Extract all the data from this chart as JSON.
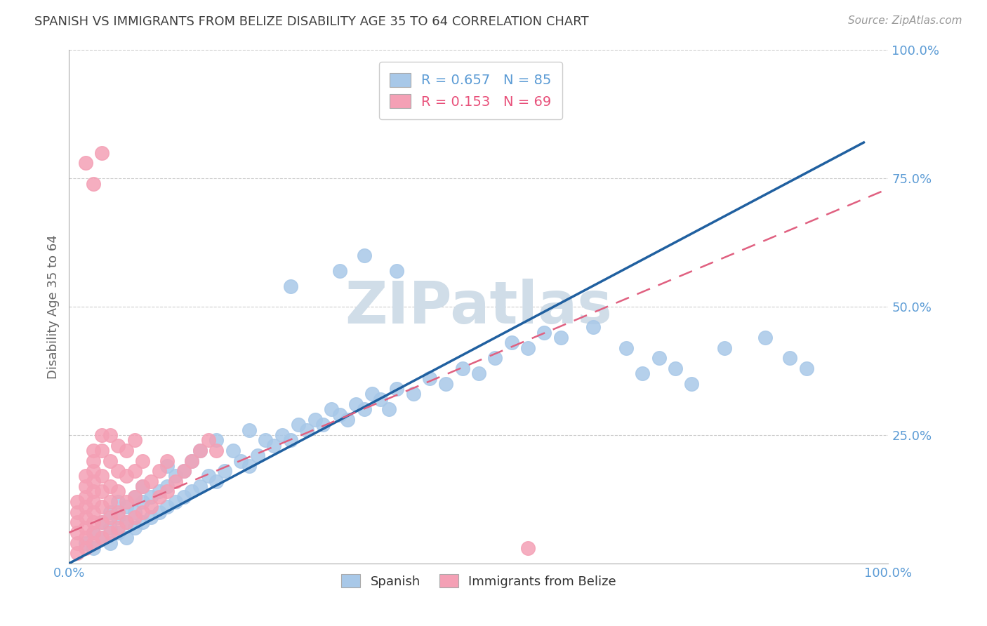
{
  "title": "SPANISH VS IMMIGRANTS FROM BELIZE DISABILITY AGE 35 TO 64 CORRELATION CHART",
  "source": "Source: ZipAtlas.com",
  "ylabel": "Disability Age 35 to 64",
  "xlim": [
    0.0,
    1.0
  ],
  "ylim": [
    0.0,
    1.0
  ],
  "ytick_positions": [
    0.0,
    0.25,
    0.5,
    0.75,
    1.0
  ],
  "yticklabels": [
    "",
    "25.0%",
    "50.0%",
    "75.0%",
    "100.0%"
  ],
  "xtick_positions": [
    0.0,
    0.125,
    0.25,
    0.375,
    0.5,
    0.625,
    0.75,
    0.875,
    1.0
  ],
  "xticklabels": [
    "0.0%",
    "",
    "",
    "",
    "",
    "",
    "",
    "",
    "100.0%"
  ],
  "blue_R": 0.657,
  "blue_N": 85,
  "pink_R": 0.153,
  "pink_N": 69,
  "blue_color": "#a8c8e8",
  "pink_color": "#f4a0b5",
  "blue_line_color": "#2060a0",
  "pink_line_color": "#e06080",
  "blue_scatter": [
    [
      0.02,
      0.04
    ],
    [
      0.03,
      0.03
    ],
    [
      0.03,
      0.06
    ],
    [
      0.04,
      0.05
    ],
    [
      0.04,
      0.08
    ],
    [
      0.05,
      0.04
    ],
    [
      0.05,
      0.07
    ],
    [
      0.05,
      0.1
    ],
    [
      0.06,
      0.06
    ],
    [
      0.06,
      0.09
    ],
    [
      0.06,
      0.12
    ],
    [
      0.07,
      0.05
    ],
    [
      0.07,
      0.08
    ],
    [
      0.07,
      0.11
    ],
    [
      0.08,
      0.07
    ],
    [
      0.08,
      0.1
    ],
    [
      0.08,
      0.13
    ],
    [
      0.09,
      0.08
    ],
    [
      0.09,
      0.12
    ],
    [
      0.09,
      0.15
    ],
    [
      0.1,
      0.09
    ],
    [
      0.1,
      0.13
    ],
    [
      0.11,
      0.1
    ],
    [
      0.11,
      0.14
    ],
    [
      0.12,
      0.11
    ],
    [
      0.12,
      0.15
    ],
    [
      0.12,
      0.19
    ],
    [
      0.13,
      0.12
    ],
    [
      0.13,
      0.17
    ],
    [
      0.14,
      0.13
    ],
    [
      0.14,
      0.18
    ],
    [
      0.15,
      0.14
    ],
    [
      0.15,
      0.2
    ],
    [
      0.16,
      0.15
    ],
    [
      0.16,
      0.22
    ],
    [
      0.17,
      0.17
    ],
    [
      0.18,
      0.16
    ],
    [
      0.18,
      0.24
    ],
    [
      0.19,
      0.18
    ],
    [
      0.2,
      0.22
    ],
    [
      0.21,
      0.2
    ],
    [
      0.22,
      0.19
    ],
    [
      0.22,
      0.26
    ],
    [
      0.23,
      0.21
    ],
    [
      0.24,
      0.24
    ],
    [
      0.25,
      0.23
    ],
    [
      0.26,
      0.25
    ],
    [
      0.27,
      0.24
    ],
    [
      0.28,
      0.27
    ],
    [
      0.29,
      0.26
    ],
    [
      0.3,
      0.28
    ],
    [
      0.31,
      0.27
    ],
    [
      0.32,
      0.3
    ],
    [
      0.33,
      0.29
    ],
    [
      0.34,
      0.28
    ],
    [
      0.35,
      0.31
    ],
    [
      0.36,
      0.3
    ],
    [
      0.37,
      0.33
    ],
    [
      0.38,
      0.32
    ],
    [
      0.39,
      0.3
    ],
    [
      0.4,
      0.34
    ],
    [
      0.42,
      0.33
    ],
    [
      0.44,
      0.36
    ],
    [
      0.46,
      0.35
    ],
    [
      0.48,
      0.38
    ],
    [
      0.5,
      0.37
    ],
    [
      0.52,
      0.4
    ],
    [
      0.54,
      0.43
    ],
    [
      0.56,
      0.42
    ],
    [
      0.58,
      0.45
    ],
    [
      0.6,
      0.44
    ],
    [
      0.64,
      0.46
    ],
    [
      0.68,
      0.42
    ],
    [
      0.7,
      0.37
    ],
    [
      0.72,
      0.4
    ],
    [
      0.74,
      0.38
    ],
    [
      0.76,
      0.35
    ],
    [
      0.8,
      0.42
    ],
    [
      0.85,
      0.44
    ],
    [
      0.88,
      0.4
    ],
    [
      0.9,
      0.38
    ],
    [
      0.27,
      0.54
    ],
    [
      0.33,
      0.57
    ],
    [
      0.36,
      0.6
    ],
    [
      0.4,
      0.57
    ]
  ],
  "pink_scatter": [
    [
      0.01,
      0.02
    ],
    [
      0.01,
      0.04
    ],
    [
      0.01,
      0.06
    ],
    [
      0.01,
      0.08
    ],
    [
      0.01,
      0.1
    ],
    [
      0.01,
      0.12
    ],
    [
      0.02,
      0.03
    ],
    [
      0.02,
      0.05
    ],
    [
      0.02,
      0.07
    ],
    [
      0.02,
      0.09
    ],
    [
      0.02,
      0.11
    ],
    [
      0.02,
      0.13
    ],
    [
      0.02,
      0.15
    ],
    [
      0.02,
      0.17
    ],
    [
      0.03,
      0.04
    ],
    [
      0.03,
      0.06
    ],
    [
      0.03,
      0.08
    ],
    [
      0.03,
      0.1
    ],
    [
      0.03,
      0.12
    ],
    [
      0.03,
      0.14
    ],
    [
      0.03,
      0.16
    ],
    [
      0.03,
      0.18
    ],
    [
      0.03,
      0.2
    ],
    [
      0.03,
      0.22
    ],
    [
      0.04,
      0.05
    ],
    [
      0.04,
      0.08
    ],
    [
      0.04,
      0.11
    ],
    [
      0.04,
      0.14
    ],
    [
      0.04,
      0.17
    ],
    [
      0.04,
      0.22
    ],
    [
      0.04,
      0.25
    ],
    [
      0.05,
      0.06
    ],
    [
      0.05,
      0.09
    ],
    [
      0.05,
      0.12
    ],
    [
      0.05,
      0.15
    ],
    [
      0.05,
      0.2
    ],
    [
      0.05,
      0.25
    ],
    [
      0.06,
      0.07
    ],
    [
      0.06,
      0.1
    ],
    [
      0.06,
      0.14
    ],
    [
      0.06,
      0.18
    ],
    [
      0.06,
      0.23
    ],
    [
      0.07,
      0.08
    ],
    [
      0.07,
      0.12
    ],
    [
      0.07,
      0.17
    ],
    [
      0.07,
      0.22
    ],
    [
      0.08,
      0.09
    ],
    [
      0.08,
      0.13
    ],
    [
      0.08,
      0.18
    ],
    [
      0.08,
      0.24
    ],
    [
      0.09,
      0.1
    ],
    [
      0.09,
      0.15
    ],
    [
      0.09,
      0.2
    ],
    [
      0.1,
      0.11
    ],
    [
      0.1,
      0.16
    ],
    [
      0.11,
      0.13
    ],
    [
      0.11,
      0.18
    ],
    [
      0.12,
      0.14
    ],
    [
      0.12,
      0.2
    ],
    [
      0.13,
      0.16
    ],
    [
      0.14,
      0.18
    ],
    [
      0.15,
      0.2
    ],
    [
      0.16,
      0.22
    ],
    [
      0.17,
      0.24
    ],
    [
      0.18,
      0.22
    ],
    [
      0.02,
      0.78
    ],
    [
      0.03,
      0.74
    ],
    [
      0.04,
      0.8
    ],
    [
      0.56,
      0.03
    ]
  ],
  "blue_line": [
    0.0,
    0.0,
    0.97,
    0.82
  ],
  "pink_line": [
    0.0,
    0.06,
    1.0,
    0.73
  ],
  "watermark": "ZIPatlas",
  "watermark_color": "#d0dde8",
  "legend_box_color": "#ffffff",
  "legend_border_color": "#cccccc",
  "grid_color": "#cccccc",
  "tick_label_color": "#5b9bd5",
  "title_color": "#404040",
  "ylabel_color": "#666666",
  "legend_text_color_blue": "#5b9bd5",
  "legend_text_color_pink": "#e8507a"
}
